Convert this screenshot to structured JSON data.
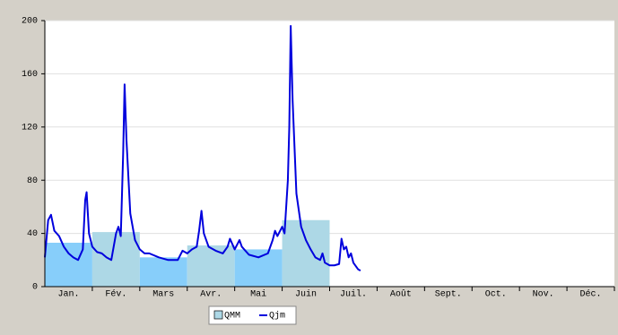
{
  "chart_data": {
    "type": "bar-line",
    "categories": [
      "Jan.",
      "Fév.",
      "Mars",
      "Avr.",
      "Mai",
      "Juin",
      "Juil.",
      "Août",
      "Sept.",
      "Oct.",
      "Nov.",
      "Déc."
    ],
    "xlim": [
      0,
      12
    ],
    "ylim": [
      0,
      200
    ],
    "yticks": [
      0,
      40,
      80,
      120,
      160,
      200
    ],
    "grid": true,
    "series": [
      {
        "name": "QMM",
        "type": "bar",
        "color": "#add8e6",
        "bar_colors": [
          "#87cefa",
          "#add8e6",
          "#87cefa",
          "#add8e6",
          "#87cefa",
          "#add8e6",
          "#87cefa",
          "#add8e6",
          "#87cefa",
          "#add8e6",
          "#87cefa",
          "#add8e6"
        ],
        "values": [
          33,
          41,
          22,
          31,
          28,
          50,
          null,
          null,
          null,
          null,
          null,
          null
        ]
      },
      {
        "name": "Qjm",
        "type": "line",
        "color": "#0000dd",
        "x": [
          0,
          0.07,
          0.13,
          0.2,
          0.3,
          0.4,
          0.5,
          0.6,
          0.7,
          0.8,
          0.85,
          0.88,
          0.93,
          1.0,
          1.1,
          1.2,
          1.3,
          1.4,
          1.5,
          1.55,
          1.6,
          1.65,
          1.68,
          1.72,
          1.8,
          1.9,
          2.0,
          2.1,
          2.2,
          2.4,
          2.6,
          2.8,
          2.9,
          3.0,
          3.1,
          3.2,
          3.25,
          3.3,
          3.35,
          3.45,
          3.6,
          3.75,
          3.85,
          3.9,
          4.0,
          4.1,
          4.15,
          4.3,
          4.5,
          4.7,
          4.8,
          4.85,
          4.9,
          5.0,
          5.05,
          5.12,
          5.15,
          5.18,
          5.22,
          5.3,
          5.4,
          5.5,
          5.6,
          5.7,
          5.8,
          5.85,
          5.9,
          6.0,
          6.1,
          6.2,
          6.25,
          6.3,
          6.35,
          6.4,
          6.45,
          6.5,
          6.6,
          6.65
        ],
        "values": [
          22,
          50,
          54,
          42,
          38,
          30,
          25,
          22,
          20,
          28,
          65,
          71,
          40,
          30,
          26,
          25,
          22,
          20,
          40,
          45,
          38,
          100,
          152,
          110,
          55,
          35,
          28,
          25,
          25,
          22,
          20,
          20,
          27,
          25,
          28,
          30,
          42,
          57,
          40,
          30,
          27,
          25,
          30,
          36,
          28,
          35,
          30,
          24,
          22,
          25,
          35,
          42,
          38,
          45,
          40,
          80,
          120,
          196,
          140,
          70,
          45,
          35,
          28,
          22,
          20,
          25,
          18,
          16,
          16,
          17,
          36,
          28,
          30,
          22,
          25,
          18,
          13,
          12
        ]
      }
    ]
  }
}
